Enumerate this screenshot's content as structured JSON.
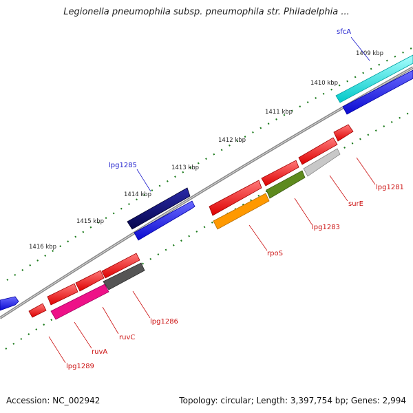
{
  "title": "Legionella pneumophila subsp. pneumophila str. Philadelphia ...",
  "footer": {
    "accession": "Accession: NC_002942",
    "stats": "Topology: circular; Length: 3,397,754 bp; Genes: 2,994"
  },
  "ruler": [
    "1409 kbp",
    "1410 kbp",
    "1411 kbp",
    "1412 kbp",
    "1413 kbp",
    "1414 kbp",
    "1415 kbp",
    "1416 kbp"
  ],
  "colors": {
    "backbone": "#8a8a8a",
    "ticks": "#1a7a1a",
    "label_forward": "#1a1acc",
    "label_reverse": "#cc1111"
  },
  "labels": {
    "sfcA": "sfcA",
    "lpg1285": "lpg1285",
    "lpg1281": "lpg1281",
    "surE": "surE",
    "lpg1283": "lpg1283",
    "rpoS": "rpoS",
    "lpg1286": "lpg1286",
    "ruvC": "ruvC",
    "ruvA": "ruvA",
    "lpg1289": "lpg1289"
  },
  "genes": [
    {
      "name": "sfcA",
      "strand": "forward",
      "color": "#00e5e5"
    },
    {
      "name": "sfcA-cds",
      "strand": "forward",
      "color": "#1010d8"
    },
    {
      "name": "lpg1285",
      "strand": "forward",
      "color": "#0a0a80"
    },
    {
      "name": "lpg1285-cds",
      "strand": "forward",
      "color": "#1a1aee"
    },
    {
      "name": "lpg1281",
      "strand": "reverse",
      "color": "#ee1111"
    },
    {
      "name": "surE",
      "strand": "reverse",
      "color": "#c8c8c8"
    },
    {
      "name": "lpg1283",
      "strand": "reverse",
      "color": "#5e8a1e"
    },
    {
      "name": "rpoS",
      "strand": "reverse",
      "color": "#ff9900"
    },
    {
      "name": "lpg1286",
      "strand": "reverse",
      "color": "#555555"
    },
    {
      "name": "ruvC",
      "strand": "reverse",
      "color": "#ee1188"
    },
    {
      "name": "lpg1289",
      "strand": "reverse",
      "color": "#ee1111"
    }
  ]
}
